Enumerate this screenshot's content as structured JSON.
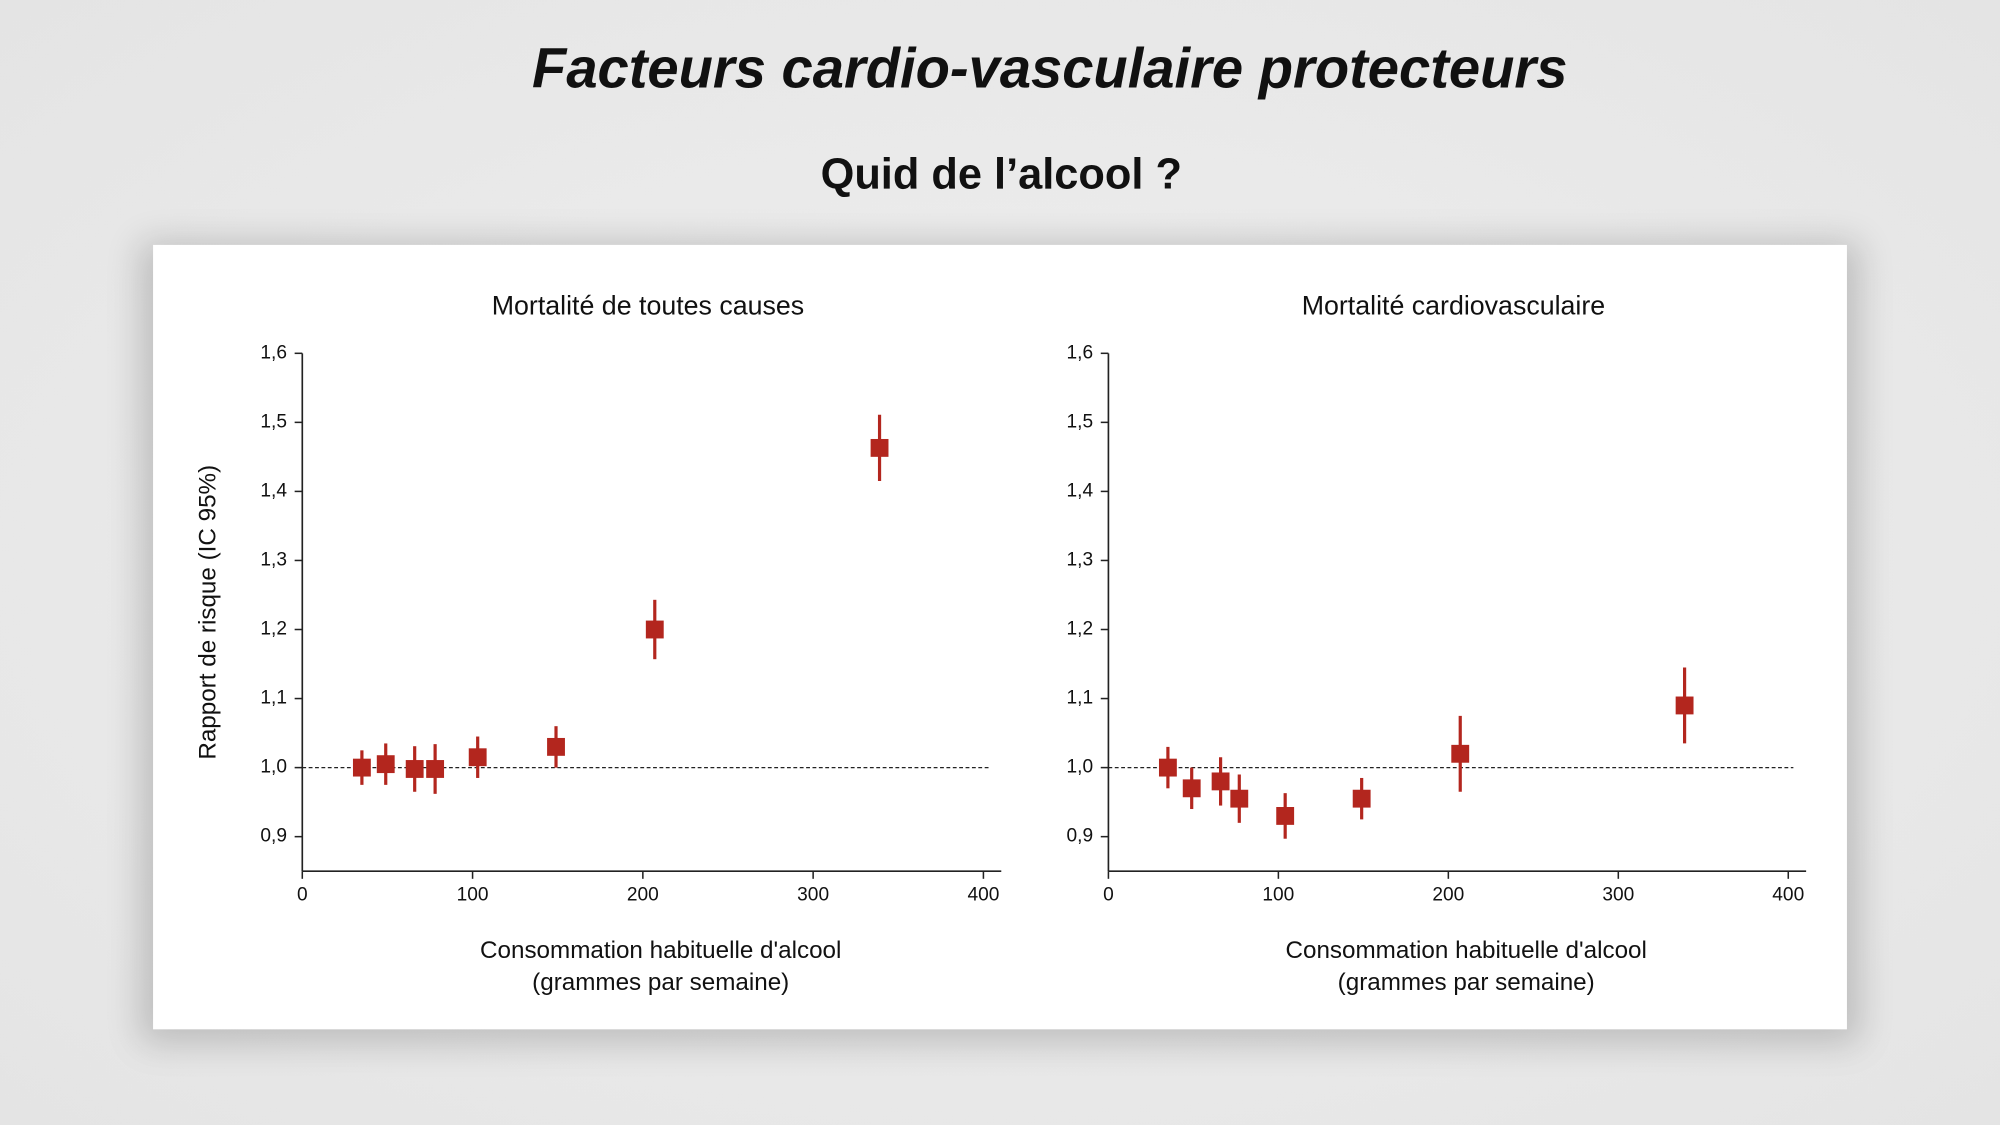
{
  "header": {
    "title": "Facteurs cardio-vasculaire protecteurs",
    "subtitle": "Quid de l’alcool ?"
  },
  "chart_data": [
    {
      "type": "scatter",
      "title": "Mortalité de toutes causes",
      "ylabel": "Rapport de risque (IC 95%)",
      "xlabel": [
        "Consommation habituelle d'alcool",
        "(grammes par semaine)"
      ],
      "x": [
        35,
        49,
        66,
        78,
        103,
        149,
        207,
        339
      ],
      "values": [
        1.0,
        1.005,
        0.998,
        0.998,
        1.015,
        1.03,
        1.2,
        1.463
      ],
      "errors": [
        0.025,
        0.03,
        0.033,
        0.036,
        0.03,
        0.03,
        0.043,
        0.048
      ],
      "color": "#b3261e",
      "hline": 1,
      "xlim": [
        0,
        400
      ],
      "xticks": [
        0,
        100,
        200,
        300,
        400
      ],
      "ylim": [
        0.85,
        1.6
      ],
      "yticks": [
        {
          "value": 0.9,
          "label": "0,9"
        },
        {
          "value": 1.0,
          "label": "1,0"
        },
        {
          "value": 1.1,
          "label": "1,1"
        },
        {
          "value": 1.2,
          "label": "1,2"
        },
        {
          "value": 1.3,
          "label": "1,3"
        },
        {
          "value": 1.4,
          "label": "1,4"
        },
        {
          "value": 1.5,
          "label": "1,5"
        },
        {
          "value": 1.6,
          "label": "1,6"
        }
      ]
    },
    {
      "type": "scatter",
      "title": "Mortalité cardiovasculaire",
      "xlabel": [
        "Consommation habituelle d'alcool",
        "(grammes par semaine)"
      ],
      "x": [
        35,
        49,
        66,
        77,
        104,
        149,
        207,
        339
      ],
      "values": [
        1.0,
        0.97,
        0.98,
        0.955,
        0.93,
        0.955,
        1.02,
        1.09
      ],
      "errors": [
        0.03,
        0.03,
        0.035,
        0.035,
        0.033,
        0.03,
        0.055,
        0.055
      ],
      "color": "#b3261e",
      "hline": 1,
      "xlim": [
        0,
        400
      ],
      "xticks": [
        0,
        100,
        200,
        300,
        400
      ],
      "ylim": [
        0.85,
        1.6
      ],
      "yticks": [
        {
          "value": 0.9,
          "label": "0,9"
        },
        {
          "value": 1.0,
          "label": "1,0"
        },
        {
          "value": 1.1,
          "label": "1,1"
        },
        {
          "value": 1.2,
          "label": "1,2"
        },
        {
          "value": 1.3,
          "label": "1,3"
        },
        {
          "value": 1.4,
          "label": "1,4"
        },
        {
          "value": 1.5,
          "label": "1,5"
        },
        {
          "value": 1.6,
          "label": "1,6"
        }
      ]
    }
  ]
}
